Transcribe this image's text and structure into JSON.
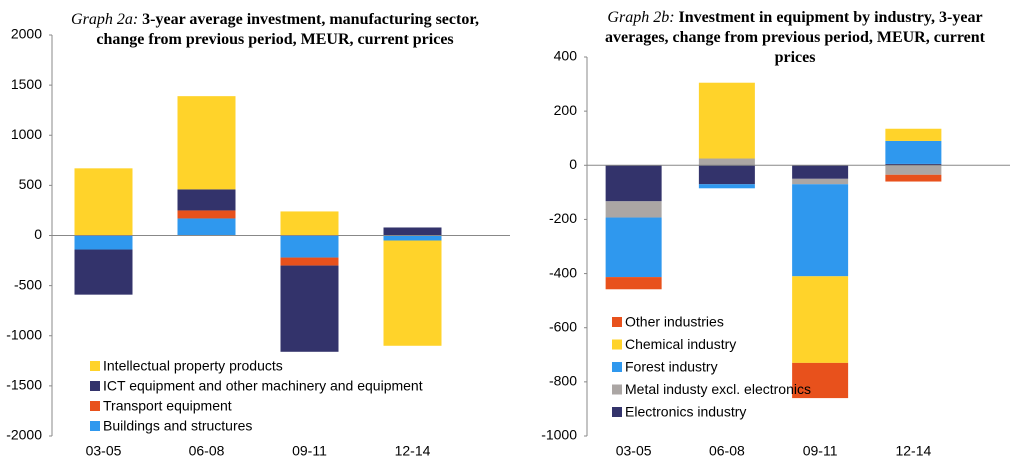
{
  "chart_data": [
    {
      "type": "stacked_bar",
      "title_label": "Graph 2a:",
      "title": "3-year average investment, manufacturing sector, change from previous period, MEUR, current prices",
      "categories": [
        "03-05",
        "06-08",
        "09-11",
        "12-14"
      ],
      "series": [
        {
          "name": "Intellectual property products",
          "color": "#FFD32A",
          "values": [
            670,
            930,
            240,
            -1050
          ]
        },
        {
          "name": "ICT equipment and other machinery and equipment",
          "color": "#33336B",
          "values": [
            -450,
            210,
            -860,
            80
          ]
        },
        {
          "name": "Transport equipment",
          "color": "#E8511C",
          "values": [
            0,
            80,
            -80,
            0
          ]
        },
        {
          "name": "Buildings and structures",
          "color": "#2F98EE",
          "values": [
            -140,
            170,
            -220,
            -50
          ]
        }
      ],
      "ylim": [
        -2000,
        2000
      ],
      "yticks": [
        -2000,
        -1500,
        -1000,
        -500,
        0,
        500,
        1000,
        1500,
        2000
      ],
      "legend": "lower-left"
    },
    {
      "type": "stacked_bar",
      "title_label": "Graph 2b:",
      "title": "Investment in equipment by industry, 3-year averages, change from previous period, MEUR, current prices",
      "categories": [
        "03-05",
        "06-08",
        "09-11",
        "12-14"
      ],
      "series": [
        {
          "name": "Other industries",
          "color": "#E8511C",
          "values": [
            -45,
            0,
            -130,
            -25
          ]
        },
        {
          "name": "Chemical industry",
          "color": "#FFD32A",
          "values": [
            0,
            280,
            -320,
            45
          ]
        },
        {
          "name": "Forest industry",
          "color": "#2F98EE",
          "values": [
            -220,
            -15,
            -340,
            85
          ]
        },
        {
          "name": "Metal industy excl. electronics",
          "color": "#ABA6A4",
          "values": [
            -60,
            25,
            -20,
            -35
          ]
        },
        {
          "name": "Electronics industry",
          "color": "#33336B",
          "values": [
            -133,
            -70,
            -50,
            5
          ]
        }
      ],
      "ylim": [
        -1000,
        400
      ],
      "yticks": [
        -1000,
        -800,
        -600,
        -400,
        -200,
        0,
        200,
        400
      ],
      "legend": "lower-left"
    }
  ]
}
